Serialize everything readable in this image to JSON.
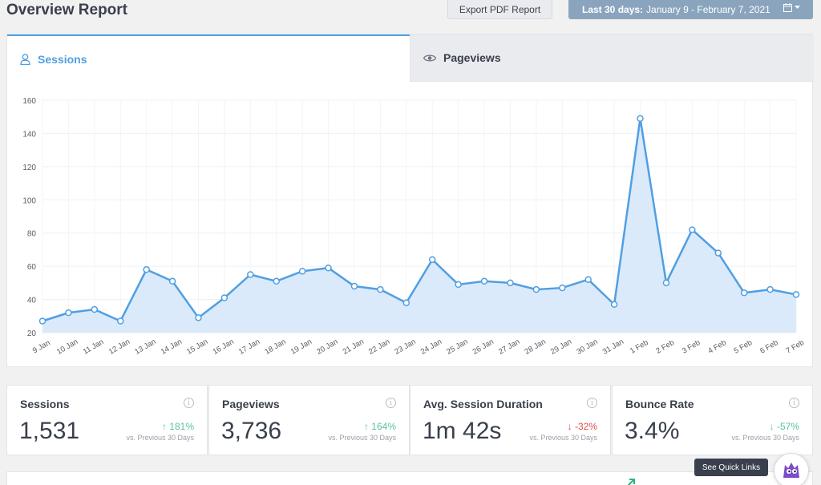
{
  "header": {
    "title": "Overview Report",
    "export_label": "Export PDF Report",
    "date_prefix": "Last 30 days:",
    "date_range": "January 9 - February 7, 2021"
  },
  "tabs": [
    {
      "label": "Sessions",
      "icon": "user-icon",
      "active": true
    },
    {
      "label": "Pageviews",
      "icon": "eye-icon",
      "active": false
    }
  ],
  "chart_data": {
    "type": "area",
    "x": [
      "9 Jan",
      "10 Jan",
      "11 Jan",
      "12 Jan",
      "13 Jan",
      "14 Jan",
      "15 Jan",
      "16 Jan",
      "17 Jan",
      "18 Jan",
      "19 Jan",
      "20 Jan",
      "21 Jan",
      "22 Jan",
      "23 Jan",
      "24 Jan",
      "25 Jan",
      "26 Jan",
      "27 Jan",
      "28 Jan",
      "29 Jan",
      "30 Jan",
      "31 Jan",
      "1 Feb",
      "2 Feb",
      "3 Feb",
      "4 Feb",
      "5 Feb",
      "6 Feb",
      "7 Feb"
    ],
    "series": [
      {
        "values": [
          27,
          32,
          34,
          27,
          58,
          51,
          29,
          41,
          55,
          51,
          57,
          59,
          48,
          46,
          38,
          64,
          49,
          51,
          50,
          46,
          47,
          52,
          37,
          149,
          50,
          82,
          68,
          44,
          46,
          43
        ]
      }
    ],
    "ylim": [
      20,
      160
    ],
    "yticks": [
      20,
      40,
      60,
      80,
      100,
      120,
      140,
      160
    ],
    "grid": true,
    "line_color": "#509fe2",
    "fill_color": "#dbeafb"
  },
  "stats": [
    {
      "label": "Sessions",
      "value": "1,531",
      "change": "181%",
      "direction": "up",
      "vs": "vs. Previous 30 Days"
    },
    {
      "label": "Pageviews",
      "value": "3,736",
      "change": "164%",
      "direction": "up",
      "vs": "vs. Previous 30 Days"
    },
    {
      "label": "Avg. Session Duration",
      "value": "1m 42s",
      "change": "-32%",
      "direction": "down",
      "vs": "vs. Previous 30 Days"
    },
    {
      "label": "Bounce Rate",
      "value": "3.4%",
      "change": "-57%",
      "direction": "down-good",
      "vs": "vs. Previous 30 Days"
    }
  ],
  "quick_links_label": "See Quick Links",
  "colors": {
    "accent": "#509fe2",
    "positive": "#5cc0a5",
    "negative": "#e14c4c",
    "date_button": "#8aa4be"
  }
}
